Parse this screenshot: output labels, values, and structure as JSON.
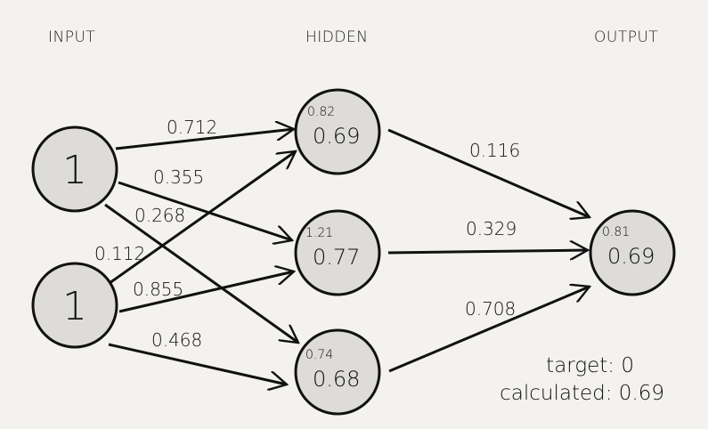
{
  "headers": {
    "input": "INPUT",
    "hidden": "HIDDEN",
    "output": "OUTPUT"
  },
  "inputs": [
    {
      "value": "1"
    },
    {
      "value": "1"
    }
  ],
  "hidden": [
    {
      "net": "0.82",
      "out": "0.69"
    },
    {
      "net": "1.21",
      "out": "0.77"
    },
    {
      "net": "0.74",
      "out": "0.68"
    }
  ],
  "output": {
    "net": "0.81",
    "out": "0.69"
  },
  "weights": {
    "i1_h1": "0.712",
    "i1_h2": "0.355",
    "i1_h3": "0.268",
    "i2_h1": "0.112",
    "i2_h2": "0.855",
    "i2_h3": "0.468",
    "h1_o": "0.116",
    "h2_o": "0.329",
    "h3_o": "0.708"
  },
  "result": {
    "target": "target: 0",
    "calculated": "calculated: 0.69"
  },
  "colors": {
    "background": "#f3f2ef",
    "node_fill": "#dddcd9",
    "stroke": "#111111"
  }
}
